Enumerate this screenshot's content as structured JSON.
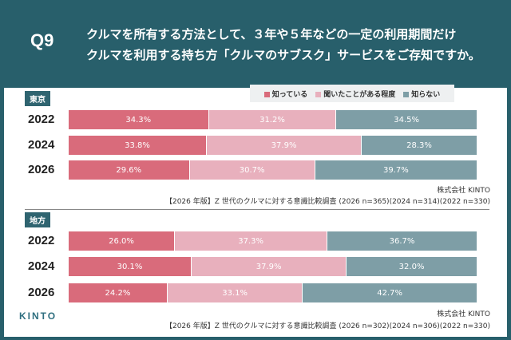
{
  "header": {
    "q": "Q9",
    "title": "クルマを所有する方法として、３年や５年などの一定の利用期間だけ\nクルマを利用する持ち方「クルマのサブスク」サービスをご存知ですか。"
  },
  "logo": "KINTO",
  "chart_data": {
    "type": "bar",
    "stacked": true,
    "orientation": "horizontal",
    "legend": {
      "placement": "top-right",
      "entries": [
        "知っている",
        "聞いたことがある程度",
        "知らない"
      ]
    },
    "colors": [
      "#d96b7b",
      "#e8b0bd",
      "#7e9ea6"
    ],
    "panels": [
      {
        "region": "東京",
        "categories": [
          "2022",
          "2024",
          "2026"
        ],
        "series": [
          {
            "name": "知っている",
            "values": [
              34.3,
              33.8,
              29.6
            ]
          },
          {
            "name": "聞いたことがある程度",
            "values": [
              31.2,
              37.9,
              30.7
            ]
          },
          {
            "name": "知らない",
            "values": [
              34.5,
              28.3,
              39.7
            ]
          }
        ],
        "source": "株式会社 KINTO",
        "note": "【2026 年版】Z 世代のクルマに対する意識比較調査 (2026 n=365)(2024 n=314)(2022 n=330)"
      },
      {
        "region": "地方",
        "categories": [
          "2022",
          "2024",
          "2026"
        ],
        "series": [
          {
            "name": "知っている",
            "values": [
              26.0,
              30.1,
              24.2
            ]
          },
          {
            "name": "聞いたことがある程度",
            "values": [
              37.3,
              37.9,
              33.1
            ]
          },
          {
            "name": "知らない",
            "values": [
              36.7,
              32.0,
              42.7
            ]
          }
        ],
        "source": "株式会社 KINTO",
        "note": "【2026 年版】Z 世代のクルマに対する意識比較調査 (2026 n=302)(2024 n=306)(2022 n=330)"
      }
    ]
  }
}
